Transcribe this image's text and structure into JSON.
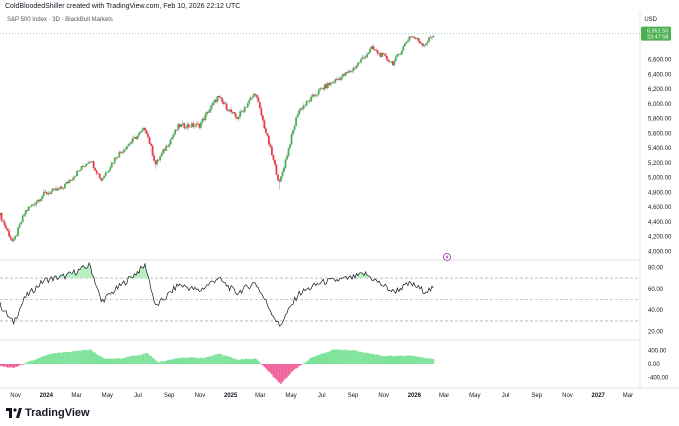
{
  "header": {
    "created_note": "ColdBloodedShiller created with TradingView.com, Feb 10, 2026 22:12 UTC",
    "symbol_line": "S&P 500 Index · 3D · BlackBull Markets",
    "currency": "USD"
  },
  "brand": {
    "name": "TradingView",
    "logo_icon": "tradingview-logo-icon"
  },
  "price_tags": {
    "last_price": "6,951.50",
    "countdown": "23:47:58",
    "tag_color": "#4caf50"
  },
  "colors": {
    "up": "#4caf50",
    "down": "#f23645",
    "wick": "#9aa0a6",
    "osc_line": "#131722",
    "hist_pos": "#7ee39a",
    "hist_neg": "#f0609a",
    "fill_ob": "#b9f0c2",
    "grid_dash": "#9598a1"
  },
  "chart_data": [
    {
      "type": "candlestick",
      "title": "S&P 500 Index · 3D · BlackBull Markets",
      "y_ticks": [
        "6,600.00",
        "6,400.00",
        "6,200.00",
        "6,000.00",
        "5,800.00",
        "5,600.00",
        "5,400.00",
        "5,200.00",
        "5,000.00",
        "4,800.00",
        "4,600.00",
        "4,400.00",
        "4,200.00",
        "4,000.00"
      ],
      "ylim": [
        3950,
        7000
      ],
      "x_range": [
        "2023-10-01",
        "2027-03-25"
      ],
      "path_points": [
        [
          "2023-10-01",
          4490
        ],
        [
          "2023-10-27",
          4110
        ],
        [
          "2023-11-20",
          4540
        ],
        [
          "2023-12-28",
          4780
        ],
        [
          "2024-01-31",
          4850
        ],
        [
          "2024-03-28",
          5250
        ],
        [
          "2024-04-19",
          4970
        ],
        [
          "2024-05-20",
          5300
        ],
        [
          "2024-07-16",
          5670
        ],
        [
          "2024-08-05",
          5180
        ],
        [
          "2024-09-20",
          5700
        ],
        [
          "2024-10-31",
          5710
        ],
        [
          "2024-12-06",
          6090
        ],
        [
          "2025-01-13",
          5800
        ],
        [
          "2025-02-19",
          6150
        ],
        [
          "2025-04-08",
          4920
        ],
        [
          "2025-05-15",
          5900
        ],
        [
          "2025-06-30",
          6200
        ],
        [
          "2025-08-29",
          6450
        ],
        [
          "2025-10-08",
          6750
        ],
        [
          "2025-11-20",
          6550
        ],
        [
          "2025-12-24",
          6930
        ],
        [
          "2026-01-20",
          6800
        ],
        [
          "2026-02-10",
          6951
        ]
      ],
      "events": [
        {
          "date": "2024-08-05",
          "low": 5120
        },
        {
          "date": "2025-04-07",
          "low": 4835
        },
        {
          "date": "2025-11-20",
          "low": 6520
        }
      ],
      "last_price": 6951.5,
      "marker_icon": "lightning-icon"
    },
    {
      "type": "line",
      "name": "oscillator",
      "y_ticks": [
        "80.00",
        "60.00",
        "40.00",
        "20.00"
      ],
      "ylim": [
        15,
        85
      ],
      "levels": [
        70,
        50,
        30
      ],
      "path_points": [
        [
          "2023-10-01",
          45
        ],
        [
          "2023-10-27",
          28
        ],
        [
          "2023-11-20",
          52
        ],
        [
          "2023-12-28",
          68
        ],
        [
          "2024-02-10",
          72
        ],
        [
          "2024-03-28",
          82
        ],
        [
          "2024-04-19",
          48
        ],
        [
          "2024-05-20",
          60
        ],
        [
          "2024-07-16",
          82
        ],
        [
          "2024-08-05",
          43
        ],
        [
          "2024-09-20",
          64
        ],
        [
          "2024-10-31",
          58
        ],
        [
          "2024-12-06",
          70
        ],
        [
          "2025-01-13",
          56
        ],
        [
          "2025-02-19",
          66
        ],
        [
          "2025-04-08",
          25
        ],
        [
          "2025-05-15",
          55
        ],
        [
          "2025-06-30",
          66
        ],
        [
          "2025-08-29",
          70
        ],
        [
          "2025-09-25",
          74
        ],
        [
          "2025-11-20",
          57
        ],
        [
          "2025-12-24",
          65
        ],
        [
          "2026-01-20",
          58
        ],
        [
          "2026-02-10",
          60
        ]
      ]
    },
    {
      "type": "bar",
      "name": "histogram",
      "y_ticks": [
        "400.00",
        "0.00",
        "-400.00"
      ],
      "ylim": [
        -650,
        650
      ],
      "path_points": [
        [
          "2023-10-01",
          -60
        ],
        [
          "2023-10-27",
          -120
        ],
        [
          "2023-11-25",
          50
        ],
        [
          "2024-01-10",
          300
        ],
        [
          "2024-03-28",
          430
        ],
        [
          "2024-04-25",
          150
        ],
        [
          "2024-05-25",
          160
        ],
        [
          "2024-07-20",
          320
        ],
        [
          "2024-08-10",
          50
        ],
        [
          "2024-09-25",
          190
        ],
        [
          "2024-11-10",
          180
        ],
        [
          "2024-12-10",
          300
        ],
        [
          "2025-01-15",
          130
        ],
        [
          "2025-02-20",
          160
        ],
        [
          "2025-03-20",
          -250
        ],
        [
          "2025-04-10",
          -600
        ],
        [
          "2025-05-05",
          -200
        ],
        [
          "2025-06-10",
          180
        ],
        [
          "2025-07-25",
          430
        ],
        [
          "2025-09-05",
          400
        ],
        [
          "2025-11-01",
          230
        ],
        [
          "2025-12-25",
          250
        ],
        [
          "2026-02-10",
          140
        ]
      ]
    }
  ],
  "x_axis": {
    "labels": [
      {
        "text": "Nov",
        "date": "2023-11-01"
      },
      {
        "text": "2024",
        "date": "2024-01-01"
      },
      {
        "text": "Mar",
        "date": "2024-03-01"
      },
      {
        "text": "May",
        "date": "2024-05-01"
      },
      {
        "text": "Jul",
        "date": "2024-07-01"
      },
      {
        "text": "Sep",
        "date": "2024-09-01"
      },
      {
        "text": "Nov",
        "date": "2024-11-01"
      },
      {
        "text": "2025",
        "date": "2025-01-01"
      },
      {
        "text": "Mar",
        "date": "2025-03-01"
      },
      {
        "text": "May",
        "date": "2025-05-01"
      },
      {
        "text": "Jul",
        "date": "2025-07-01"
      },
      {
        "text": "Sep",
        "date": "2025-09-01"
      },
      {
        "text": "Nov",
        "date": "2025-11-01"
      },
      {
        "text": "2026",
        "date": "2026-01-01"
      },
      {
        "text": "Mar",
        "date": "2026-03-01"
      },
      {
        "text": "May",
        "date": "2026-05-01"
      },
      {
        "text": "Jul",
        "date": "2026-07-01"
      },
      {
        "text": "Sep",
        "date": "2026-09-01"
      },
      {
        "text": "Nov",
        "date": "2026-11-01"
      },
      {
        "text": "2027",
        "date": "2027-01-01"
      },
      {
        "text": "Mar",
        "date": "2027-03-01"
      }
    ]
  }
}
